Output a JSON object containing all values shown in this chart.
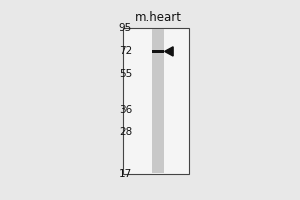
{
  "background_color": "#e8e8e8",
  "panel_bg": "#f5f5f5",
  "lane_color": "#c8c8c8",
  "band_color": "#111111",
  "arrow_color": "#111111",
  "lane_label": "m.heart",
  "mw_markers": [
    95,
    72,
    55,
    36,
    28,
    17
  ],
  "band_mw": 72,
  "fig_width": 3.0,
  "fig_height": 2.0,
  "dpi": 100,
  "mw_fontsize": 7.5,
  "lane_label_fontsize": 8.5
}
